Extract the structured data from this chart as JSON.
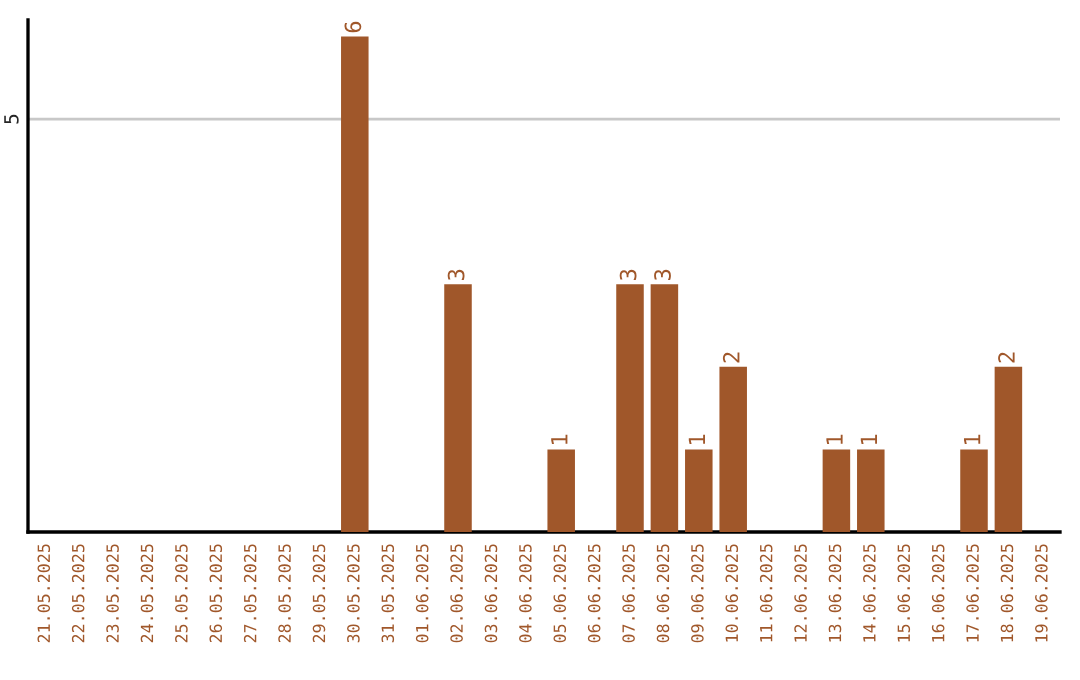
{
  "chart_data": {
    "type": "bar",
    "categories": [
      "21.05.2025",
      "22.05.2025",
      "23.05.2025",
      "24.05.2025",
      "25.05.2025",
      "26.05.2025",
      "27.05.2025",
      "28.05.2025",
      "29.05.2025",
      "30.05.2025",
      "31.05.2025",
      "01.06.2025",
      "02.06.2025",
      "03.06.2025",
      "04.06.2025",
      "05.06.2025",
      "06.06.2025",
      "07.06.2025",
      "08.06.2025",
      "09.06.2025",
      "10.06.2025",
      "11.06.2025",
      "12.06.2025",
      "13.06.2025",
      "14.06.2025",
      "15.06.2025",
      "16.06.2025",
      "17.06.2025",
      "18.06.2025",
      "19.06.2025"
    ],
    "values": [
      0,
      0,
      0,
      0,
      0,
      0,
      0,
      0,
      0,
      6,
      0,
      0,
      3,
      0,
      0,
      1,
      0,
      3,
      3,
      1,
      2,
      0,
      0,
      1,
      1,
      0,
      0,
      1,
      2,
      0
    ],
    "value_labels": [
      null,
      null,
      null,
      null,
      null,
      null,
      null,
      null,
      null,
      "6",
      null,
      null,
      "3",
      null,
      null,
      "1",
      null,
      "3",
      "3",
      "1",
      "2",
      null,
      null,
      "1",
      "1",
      null,
      null,
      "1",
      "2",
      null
    ],
    "color": "#a0572a",
    "ylim": [
      0,
      6.2
    ],
    "yticks": [
      5
    ],
    "grid": "y",
    "legend": false
  }
}
